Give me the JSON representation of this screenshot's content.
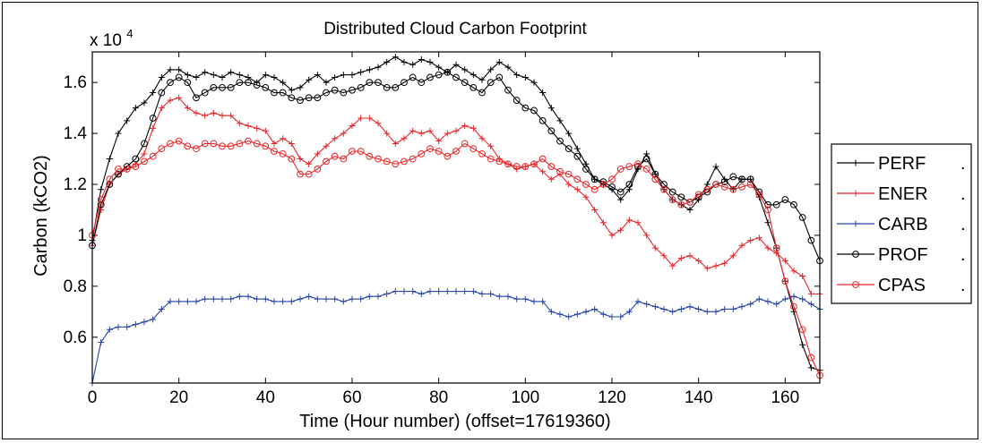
{
  "chart_data": {
    "type": "line",
    "title": "Distributed Cloud Carbon Footprint",
    "xlabel": "Time (Hour number) (offset=17619360)",
    "ylabel": "Carbon (kCO2)",
    "y_multiplier": "x 10",
    "y_multiplier_exp": "4",
    "xlim": [
      0,
      168
    ],
    "ylim": [
      0.42,
      1.72
    ],
    "x_ticks": [
      0,
      20,
      40,
      60,
      80,
      100,
      120,
      140,
      160
    ],
    "x_tick_labels": [
      "0",
      "20",
      "40",
      "60",
      "80",
      "100",
      "120",
      "140",
      "160"
    ],
    "y_ticks": [
      0.6,
      0.8,
      1.0,
      1.2,
      1.4,
      1.6
    ],
    "y_tick_labels": [
      "0.6",
      "0.8",
      "1",
      "1.2",
      "1.4",
      "1.6"
    ],
    "grid": false,
    "legend_position": "right",
    "series": [
      {
        "name": "PERF",
        "color": "#000000",
        "marker": "plus",
        "legend_suffix": ".",
        "x": [
          0,
          2,
          4,
          6,
          8,
          10,
          12,
          14,
          16,
          18,
          20,
          22,
          24,
          26,
          28,
          30,
          32,
          34,
          36,
          38,
          40,
          42,
          44,
          46,
          48,
          50,
          52,
          54,
          56,
          58,
          60,
          62,
          64,
          66,
          68,
          70,
          72,
          74,
          76,
          78,
          80,
          82,
          84,
          86,
          88,
          90,
          92,
          94,
          96,
          98,
          100,
          102,
          104,
          106,
          108,
          110,
          112,
          114,
          116,
          118,
          120,
          122,
          124,
          126,
          128,
          130,
          132,
          134,
          136,
          138,
          140,
          142,
          144,
          146,
          148,
          150,
          152,
          154,
          156,
          158,
          160,
          162,
          164,
          166,
          168
        ],
        "y": [
          0.98,
          1.18,
          1.3,
          1.4,
          1.45,
          1.5,
          1.52,
          1.56,
          1.62,
          1.65,
          1.65,
          1.63,
          1.62,
          1.64,
          1.63,
          1.62,
          1.64,
          1.63,
          1.62,
          1.6,
          1.63,
          1.62,
          1.6,
          1.57,
          1.58,
          1.61,
          1.63,
          1.6,
          1.62,
          1.63,
          1.63,
          1.64,
          1.65,
          1.66,
          1.68,
          1.7,
          1.68,
          1.67,
          1.69,
          1.68,
          1.66,
          1.64,
          1.67,
          1.65,
          1.63,
          1.61,
          1.65,
          1.68,
          1.66,
          1.63,
          1.62,
          1.6,
          1.56,
          1.5,
          1.45,
          1.4,
          1.34,
          1.28,
          1.22,
          1.2,
          1.18,
          1.14,
          1.18,
          1.26,
          1.32,
          1.24,
          1.18,
          1.14,
          1.12,
          1.1,
          1.14,
          1.2,
          1.27,
          1.22,
          1.18,
          1.22,
          1.22,
          1.15,
          1.05,
          0.95,
          0.82,
          0.7,
          0.57,
          0.48,
          0.47
        ]
      },
      {
        "name": "ENER",
        "color": "#e8262a",
        "marker": "plus",
        "legend_suffix": ".",
        "x": [
          0,
          2,
          4,
          6,
          8,
          10,
          12,
          14,
          16,
          18,
          20,
          22,
          24,
          26,
          28,
          30,
          32,
          34,
          36,
          38,
          40,
          42,
          44,
          46,
          48,
          50,
          52,
          54,
          56,
          58,
          60,
          62,
          64,
          66,
          68,
          70,
          72,
          74,
          76,
          78,
          80,
          82,
          84,
          86,
          88,
          90,
          92,
          94,
          96,
          98,
          100,
          102,
          104,
          106,
          108,
          110,
          112,
          114,
          116,
          118,
          120,
          122,
          124,
          126,
          128,
          130,
          132,
          134,
          136,
          138,
          140,
          142,
          144,
          146,
          148,
          150,
          152,
          154,
          156,
          158,
          160,
          162,
          164,
          166,
          168
        ],
        "y": [
          0.96,
          1.1,
          1.2,
          1.24,
          1.26,
          1.28,
          1.32,
          1.42,
          1.5,
          1.53,
          1.54,
          1.5,
          1.48,
          1.47,
          1.48,
          1.47,
          1.47,
          1.44,
          1.43,
          1.42,
          1.41,
          1.36,
          1.38,
          1.36,
          1.3,
          1.28,
          1.32,
          1.35,
          1.38,
          1.4,
          1.43,
          1.46,
          1.46,
          1.44,
          1.4,
          1.36,
          1.38,
          1.41,
          1.4,
          1.41,
          1.37,
          1.4,
          1.41,
          1.43,
          1.42,
          1.38,
          1.35,
          1.3,
          1.28,
          1.26,
          1.27,
          1.28,
          1.25,
          1.22,
          1.24,
          1.2,
          1.18,
          1.15,
          1.1,
          1.05,
          1.0,
          1.02,
          1.06,
          1.05,
          1.0,
          0.95,
          0.92,
          0.88,
          0.91,
          0.92,
          0.9,
          0.87,
          0.88,
          0.89,
          0.92,
          0.96,
          0.98,
          0.99,
          0.95,
          0.93,
          0.9,
          0.86,
          0.84,
          0.77,
          0.77
        ]
      },
      {
        "name": "CARB",
        "color": "#2745a8",
        "marker": "plus",
        "legend_suffix": ".",
        "x": [
          0,
          2,
          4,
          6,
          8,
          10,
          12,
          14,
          16,
          18,
          20,
          22,
          24,
          26,
          28,
          30,
          32,
          34,
          36,
          38,
          40,
          42,
          44,
          46,
          48,
          50,
          52,
          54,
          56,
          58,
          60,
          62,
          64,
          66,
          68,
          70,
          72,
          74,
          76,
          78,
          80,
          82,
          84,
          86,
          88,
          90,
          92,
          94,
          96,
          98,
          100,
          102,
          104,
          106,
          108,
          110,
          112,
          114,
          116,
          118,
          120,
          122,
          124,
          126,
          128,
          130,
          132,
          134,
          136,
          138,
          140,
          142,
          144,
          146,
          148,
          150,
          152,
          154,
          156,
          158,
          160,
          162,
          164,
          166,
          168
        ],
        "y": [
          0.42,
          0.58,
          0.63,
          0.64,
          0.64,
          0.65,
          0.66,
          0.67,
          0.71,
          0.74,
          0.74,
          0.74,
          0.74,
          0.75,
          0.75,
          0.75,
          0.75,
          0.76,
          0.76,
          0.75,
          0.75,
          0.74,
          0.74,
          0.74,
          0.75,
          0.76,
          0.75,
          0.75,
          0.75,
          0.74,
          0.75,
          0.75,
          0.76,
          0.76,
          0.77,
          0.78,
          0.78,
          0.78,
          0.77,
          0.78,
          0.78,
          0.78,
          0.78,
          0.78,
          0.78,
          0.77,
          0.77,
          0.76,
          0.76,
          0.75,
          0.75,
          0.74,
          0.74,
          0.7,
          0.69,
          0.68,
          0.69,
          0.7,
          0.71,
          0.69,
          0.68,
          0.68,
          0.7,
          0.74,
          0.73,
          0.72,
          0.71,
          0.7,
          0.71,
          0.72,
          0.71,
          0.7,
          0.7,
          0.71,
          0.71,
          0.72,
          0.73,
          0.75,
          0.74,
          0.73,
          0.75,
          0.76,
          0.75,
          0.73,
          0.71
        ]
      },
      {
        "name": "PROF",
        "color": "#000000",
        "marker": "circle",
        "legend_suffix": ".",
        "x": [
          0,
          2,
          4,
          6,
          8,
          10,
          12,
          14,
          16,
          18,
          20,
          22,
          24,
          26,
          28,
          30,
          32,
          34,
          36,
          38,
          40,
          42,
          44,
          46,
          48,
          50,
          52,
          54,
          56,
          58,
          60,
          62,
          64,
          66,
          68,
          70,
          72,
          74,
          76,
          78,
          80,
          82,
          84,
          86,
          88,
          90,
          92,
          94,
          96,
          98,
          100,
          102,
          104,
          106,
          108,
          110,
          112,
          114,
          116,
          118,
          120,
          122,
          124,
          126,
          128,
          130,
          132,
          134,
          136,
          138,
          140,
          142,
          144,
          146,
          148,
          150,
          152,
          154,
          156,
          158,
          160,
          162,
          164,
          166,
          168
        ],
        "y": [
          0.96,
          1.12,
          1.2,
          1.24,
          1.27,
          1.3,
          1.36,
          1.46,
          1.56,
          1.6,
          1.62,
          1.6,
          1.54,
          1.56,
          1.58,
          1.58,
          1.58,
          1.6,
          1.6,
          1.59,
          1.58,
          1.56,
          1.56,
          1.54,
          1.53,
          1.54,
          1.54,
          1.56,
          1.57,
          1.56,
          1.57,
          1.58,
          1.6,
          1.6,
          1.58,
          1.58,
          1.6,
          1.62,
          1.6,
          1.62,
          1.63,
          1.64,
          1.62,
          1.6,
          1.58,
          1.56,
          1.6,
          1.62,
          1.57,
          1.53,
          1.5,
          1.49,
          1.45,
          1.41,
          1.37,
          1.34,
          1.31,
          1.26,
          1.22,
          1.21,
          1.19,
          1.17,
          1.2,
          1.27,
          1.3,
          1.24,
          1.2,
          1.17,
          1.15,
          1.13,
          1.15,
          1.17,
          1.2,
          1.21,
          1.23,
          1.22,
          1.22,
          1.17,
          1.12,
          1.12,
          1.14,
          1.12,
          1.07,
          0.98,
          0.9
        ]
      },
      {
        "name": "CPAS",
        "color": "#e8262a",
        "marker": "circle",
        "legend_suffix": ".",
        "x": [
          0,
          2,
          4,
          6,
          8,
          10,
          12,
          14,
          16,
          18,
          20,
          22,
          24,
          26,
          28,
          30,
          32,
          34,
          36,
          38,
          40,
          42,
          44,
          46,
          48,
          50,
          52,
          54,
          56,
          58,
          60,
          62,
          64,
          66,
          68,
          70,
          72,
          74,
          76,
          78,
          80,
          82,
          84,
          86,
          88,
          90,
          92,
          94,
          96,
          98,
          100,
          102,
          104,
          106,
          108,
          110,
          112,
          114,
          116,
          118,
          120,
          122,
          124,
          126,
          128,
          130,
          132,
          134,
          136,
          138,
          140,
          142,
          144,
          146,
          148,
          150,
          152,
          154,
          156,
          158,
          160,
          162,
          164,
          166,
          168
        ],
        "y": [
          1.0,
          1.14,
          1.22,
          1.26,
          1.26,
          1.27,
          1.29,
          1.31,
          1.34,
          1.36,
          1.37,
          1.35,
          1.34,
          1.36,
          1.36,
          1.35,
          1.35,
          1.36,
          1.37,
          1.36,
          1.35,
          1.33,
          1.32,
          1.3,
          1.24,
          1.24,
          1.26,
          1.29,
          1.31,
          1.3,
          1.33,
          1.33,
          1.31,
          1.3,
          1.29,
          1.28,
          1.29,
          1.3,
          1.32,
          1.34,
          1.33,
          1.31,
          1.33,
          1.36,
          1.34,
          1.32,
          1.3,
          1.29,
          1.28,
          1.27,
          1.27,
          1.28,
          1.3,
          1.27,
          1.25,
          1.24,
          1.22,
          1.2,
          1.18,
          1.2,
          1.22,
          1.26,
          1.27,
          1.28,
          1.26,
          1.22,
          1.18,
          1.14,
          1.12,
          1.13,
          1.16,
          1.18,
          1.2,
          1.19,
          1.18,
          1.19,
          1.2,
          1.16,
          1.1,
          0.95,
          0.82,
          0.72,
          0.63,
          0.52,
          0.45
        ]
      }
    ]
  }
}
